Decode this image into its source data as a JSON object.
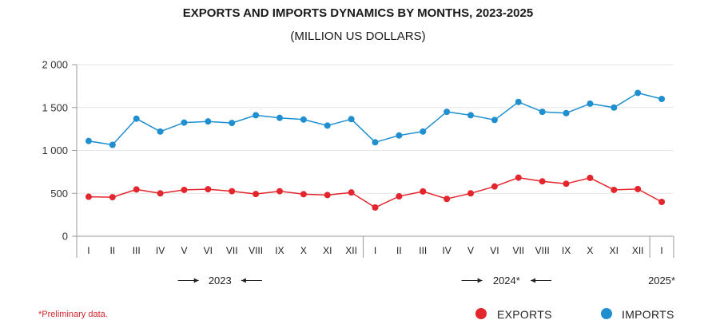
{
  "chart_data": {
    "type": "line",
    "title": "EXPORTS AND IMPORTS DYNAMICS BY MONTHS, 2023-2025",
    "subtitle": "(MILLION US DOLLARS)",
    "ylim": [
      0,
      2000
    ],
    "yticks": [
      0,
      500,
      1000,
      1500,
      2000
    ],
    "ytick_labels": [
      "0",
      "500",
      "1 000",
      "1 500",
      "2 000"
    ],
    "grid": "horizontal",
    "categories": [
      "I",
      "II",
      "III",
      "IV",
      "V",
      "VI",
      "VII",
      "VIII",
      "IX",
      "X",
      "XI",
      "XII",
      "I",
      "II",
      "III",
      "IV",
      "V",
      "VI",
      "VII",
      "VIII",
      "IX",
      "X",
      "XI",
      "XII",
      "I"
    ],
    "years": [
      {
        "label": "2023",
        "count": 12
      },
      {
        "label": "2024*",
        "count": 12
      },
      {
        "label": "2025*",
        "count": 1
      }
    ],
    "series": [
      {
        "name": "EXPORTS",
        "color": "#e3262d",
        "values": [
          460,
          455,
          545,
          500,
          540,
          548,
          525,
          492,
          525,
          490,
          480,
          510,
          335,
          465,
          522,
          435,
          500,
          580,
          683,
          640,
          612,
          680,
          540,
          550,
          400
        ]
      },
      {
        "name": "IMPORTS",
        "color": "#1f8fd0",
        "values": [
          1110,
          1065,
          1370,
          1220,
          1325,
          1338,
          1320,
          1410,
          1380,
          1360,
          1290,
          1365,
          1095,
          1175,
          1220,
          1450,
          1410,
          1355,
          1565,
          1450,
          1435,
          1545,
          1500,
          1670,
          1600
        ]
      }
    ],
    "footnote": "*Preliminary data."
  },
  "colors": {
    "axis": "#9a9a9a",
    "grid": "#e6e6e6"
  }
}
